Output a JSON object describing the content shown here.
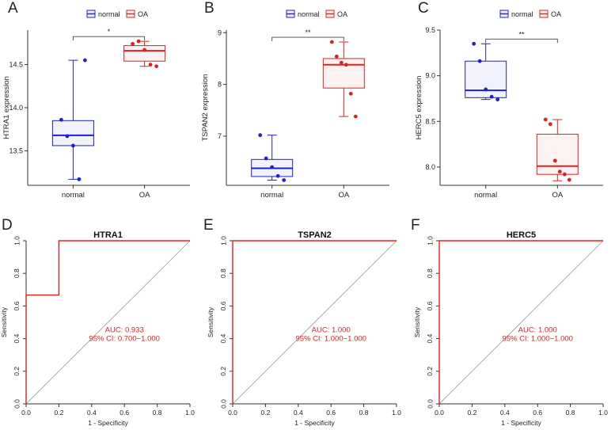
{
  "figure": {
    "panels": [
      "A",
      "B",
      "C",
      "D",
      "E",
      "F"
    ]
  },
  "colors": {
    "normal": "#2020d0",
    "OA": "#e02020",
    "axis": "#333333",
    "diag": "#999999",
    "roc": "#e02020",
    "auc_text": "#e02020"
  },
  "chart_data": [
    {
      "type": "box",
      "panel": "A",
      "title": "",
      "xlabel": "",
      "ylabel": "HTRA1 expression",
      "categories": [
        "normal",
        "OA"
      ],
      "legend": [
        "normal",
        "OA"
      ],
      "ylim": [
        13.1,
        14.9
      ],
      "yticks": [
        13.5,
        14.0,
        14.5
      ],
      "ytick_labels": [
        "13.5",
        "14.0",
        "14.5"
      ],
      "significance": "*",
      "boxes": [
        {
          "q1": 13.56,
          "median": 13.68,
          "q3": 13.85,
          "min": 13.17,
          "max": 14.55,
          "points": [
            13.86,
            13.67,
            13.56,
            13.17,
            14.55
          ]
        },
        {
          "q1": 14.54,
          "median": 14.66,
          "q3": 14.72,
          "min": 14.48,
          "max": 14.77,
          "points": [
            14.74,
            14.77,
            14.67,
            14.5,
            14.48
          ]
        }
      ]
    },
    {
      "type": "box",
      "panel": "B",
      "title": "",
      "xlabel": "",
      "ylabel": "TSPAN2 expression",
      "categories": [
        "normal",
        "OA"
      ],
      "legend": [
        "normal",
        "OA"
      ],
      "ylim": [
        6.05,
        9.05
      ],
      "yticks": [
        7,
        8,
        9
      ],
      "ytick_labels": [
        "7",
        "8",
        "9"
      ],
      "significance": "**",
      "boxes": [
        {
          "q1": 6.22,
          "median": 6.38,
          "q3": 6.55,
          "min": 6.15,
          "max": 7.02,
          "points": [
            7.02,
            6.57,
            6.4,
            6.23,
            6.15
          ]
        },
        {
          "q1": 7.93,
          "median": 8.38,
          "q3": 8.5,
          "min": 7.38,
          "max": 8.82,
          "points": [
            8.82,
            8.54,
            8.42,
            8.38,
            7.82,
            7.38
          ]
        }
      ]
    },
    {
      "type": "box",
      "panel": "C",
      "title": "",
      "xlabel": "",
      "ylabel": "HERC5 expression",
      "categories": [
        "normal",
        "OA"
      ],
      "legend": [
        "normal",
        "OA"
      ],
      "ylim": [
        7.8,
        9.5
      ],
      "yticks": [
        8.0,
        8.5,
        9.0,
        9.5
      ],
      "ytick_labels": [
        "8.0",
        "8.5",
        "9.0",
        "9.5"
      ],
      "significance": "**",
      "boxes": [
        {
          "q1": 8.76,
          "median": 8.84,
          "q3": 9.16,
          "min": 8.74,
          "max": 9.35,
          "points": [
            9.35,
            9.16,
            8.85,
            8.77,
            8.74
          ]
        },
        {
          "q1": 7.92,
          "median": 8.01,
          "q3": 8.36,
          "min": 7.85,
          "max": 8.52,
          "points": [
            8.52,
            8.47,
            8.07,
            7.95,
            7.92,
            7.86
          ]
        }
      ]
    },
    {
      "type": "line",
      "panel": "D",
      "title": "HTRA1",
      "xlabel": "1 - Specificity",
      "ylabel": "Sensitivity",
      "xlim": [
        0,
        1
      ],
      "ylim": [
        0,
        1
      ],
      "ticks": [
        0.0,
        0.2,
        0.4,
        0.6,
        0.8,
        1.0
      ],
      "tick_labels": [
        "0.0",
        "0.2",
        "0.4",
        "0.6",
        "0.8",
        "1.0"
      ],
      "x": [
        0,
        0,
        0.2,
        0.2,
        1
      ],
      "y": [
        0,
        0.667,
        0.667,
        1,
        1
      ],
      "auc_text": "AUC: 0.933",
      "ci_text": "95% CI: 0.700−1.000"
    },
    {
      "type": "line",
      "panel": "E",
      "title": "TSPAN2",
      "xlabel": "1 - Specificity",
      "ylabel": "Sensitivity",
      "xlim": [
        0,
        1
      ],
      "ylim": [
        0,
        1
      ],
      "ticks": [
        0.0,
        0.2,
        0.4,
        0.6,
        0.8,
        1.0
      ],
      "tick_labels": [
        "0.0",
        "0.2",
        "0.4",
        "0.6",
        "0.8",
        "1.0"
      ],
      "x": [
        0,
        0,
        1
      ],
      "y": [
        0,
        1,
        1
      ],
      "auc_text": "AUC: 1.000",
      "ci_text": "95% CI: 1.000−1.000"
    },
    {
      "type": "line",
      "panel": "F",
      "title": "HERC5",
      "xlabel": "1 - Specificity",
      "ylabel": "Sensitivity",
      "xlim": [
        0,
        1
      ],
      "ylim": [
        0,
        1
      ],
      "ticks": [
        0.0,
        0.2,
        0.4,
        0.6,
        0.8,
        1.0
      ],
      "tick_labels": [
        "0.0",
        "0.2",
        "0.4",
        "0.6",
        "0.8",
        "1.0"
      ],
      "x": [
        0,
        0,
        1
      ],
      "y": [
        0,
        1,
        1
      ],
      "auc_text": "AUC: 1.000",
      "ci_text": "95% CI: 1.000−1.000"
    }
  ]
}
